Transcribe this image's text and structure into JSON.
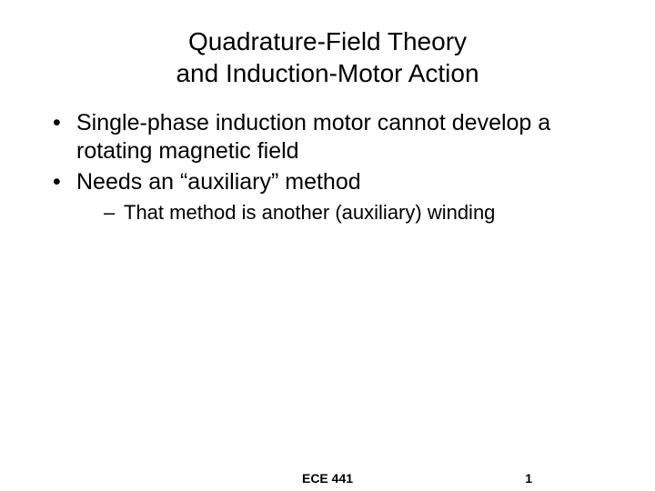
{
  "slide": {
    "title_line1": "Quadrature-Field Theory",
    "title_line2": "and Induction-Motor Action",
    "bullets": {
      "b1": "Single-phase induction motor cannot develop a rotating magnetic field",
      "b2": "Needs an “auxiliary” method",
      "b2_sub1": "That method is another (auxiliary) winding"
    },
    "footer": {
      "course": "ECE 441",
      "page": "1"
    }
  },
  "styling": {
    "background_color": "#ffffff",
    "text_color": "#000000",
    "title_fontsize": 28,
    "body_fontsize": 25,
    "sub_fontsize": 22,
    "footer_fontsize": 14,
    "font_family": "Arial"
  }
}
